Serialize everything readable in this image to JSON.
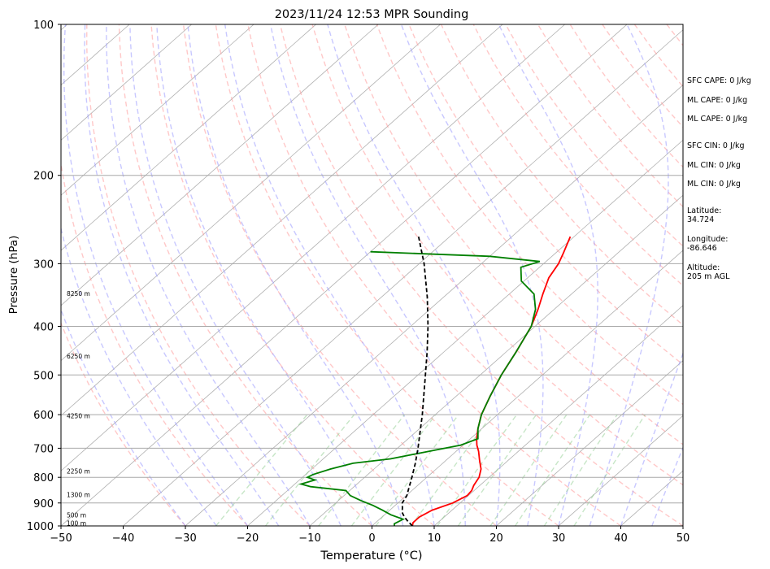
{
  "chart_data": {
    "type": "line",
    "title": "2023/11/24 12:53 MPR Sounding",
    "xlabel": "Temperature (°C)",
    "ylabel": "Pressure (hPa)",
    "xlim": [
      -50,
      50
    ],
    "ylim": [
      1000,
      100
    ],
    "y_scale": "log",
    "skew": "skew-T",
    "grid": "isobars at 200, 300, 400, 500, 600, 700, 800, 900 hPa",
    "x_ticks": [
      "−50",
      "−40",
      "−30",
      "−20",
      "−10",
      "0",
      "10",
      "20",
      "30",
      "40",
      "50"
    ],
    "y_ticks": [
      "100",
      "200",
      "300",
      "400",
      "500",
      "600",
      "700",
      "800",
      "900",
      "1000"
    ],
    "series": [
      {
        "role": "temperature",
        "color": "#ff0000",
        "points": [
          [
            1000,
            6.5
          ],
          [
            985,
            6.0
          ],
          [
            960,
            6.0
          ],
          [
            930,
            6.8
          ],
          [
            900,
            8.8
          ],
          [
            870,
            9.8
          ],
          [
            850,
            9.6
          ],
          [
            830,
            9.0
          ],
          [
            800,
            8.4
          ],
          [
            770,
            7.2
          ],
          [
            740,
            5.4
          ],
          [
            710,
            3.6
          ],
          [
            690,
            2.2
          ],
          [
            670,
            1.0
          ],
          [
            640,
            -0.6
          ],
          [
            600,
            -2.6
          ],
          [
            550,
            -4.6
          ],
          [
            500,
            -6.6
          ],
          [
            450,
            -8.4
          ],
          [
            400,
            -10.6
          ],
          [
            370,
            -12.6
          ],
          [
            345,
            -14.6
          ],
          [
            320,
            -16.6
          ],
          [
            300,
            -17.6
          ],
          [
            285,
            -18.8
          ],
          [
            265,
            -20.6
          ]
        ]
      },
      {
        "role": "dewpoint",
        "color": "#008000",
        "points": [
          [
            1000,
            3.6
          ],
          [
            990,
            3.2
          ],
          [
            970,
            3.8
          ],
          [
            950,
            1.0
          ],
          [
            930,
            -1.2
          ],
          [
            910,
            -3.6
          ],
          [
            890,
            -6.4
          ],
          [
            870,
            -9.0
          ],
          [
            850,
            -10.6
          ],
          [
            835,
            -17.0
          ],
          [
            825,
            -19.0
          ],
          [
            810,
            -17.5
          ],
          [
            800,
            -19.2
          ],
          [
            790,
            -18.8
          ],
          [
            770,
            -17.0
          ],
          [
            750,
            -14.4
          ],
          [
            735,
            -9.2
          ],
          [
            710,
            -4.4
          ],
          [
            690,
            -0.4
          ],
          [
            670,
            1.2
          ],
          [
            640,
            -0.6
          ],
          [
            600,
            -2.6
          ],
          [
            550,
            -4.6
          ],
          [
            500,
            -6.6
          ],
          [
            450,
            -8.4
          ],
          [
            400,
            -10.6
          ],
          [
            370,
            -13.0
          ],
          [
            345,
            -16.0
          ],
          [
            325,
            -20.4
          ],
          [
            305,
            -23.0
          ],
          [
            297,
            -21.0
          ],
          [
            290,
            -30.0
          ],
          [
            284,
            -50.0
          ]
        ]
      },
      {
        "role": "parcel",
        "color": "#000000",
        "dash": "dashed",
        "points": [
          [
            1000,
            6.5
          ],
          [
            980,
            5.0
          ],
          [
            960,
            3.6
          ],
          [
            940,
            2.4
          ],
          [
            920,
            1.6
          ],
          [
            900,
            0.7
          ],
          [
            870,
            0.1
          ],
          [
            850,
            -0.6
          ],
          [
            800,
            -2.4
          ],
          [
            750,
            -4.4
          ],
          [
            700,
            -6.7
          ],
          [
            650,
            -9.3
          ],
          [
            600,
            -12.1
          ],
          [
            550,
            -15.3
          ],
          [
            500,
            -18.8
          ],
          [
            450,
            -22.7
          ],
          [
            400,
            -27.2
          ],
          [
            350,
            -32.6
          ],
          [
            300,
            -39.2
          ],
          [
            265,
            -45.0
          ]
        ]
      }
    ],
    "background_lines": {
      "dry_adiabats": "dashed, light red",
      "moist_adiabats": "dashed, light blue",
      "mixing_ratio": "dashed, light green",
      "isotherms": "solid, gray"
    },
    "height_labels": [
      {
        "pressure": 990,
        "text": "100 m"
      },
      {
        "pressure": 955,
        "text": "500 m"
      },
      {
        "pressure": 870,
        "text": "1300 m"
      },
      {
        "pressure": 780,
        "text": "2250 m"
      },
      {
        "pressure": 605,
        "text": "4250 m"
      },
      {
        "pressure": 460,
        "text": "6250 m"
      },
      {
        "pressure": 345,
        "text": "8250 m"
      }
    ],
    "annotations": [
      "SFC CAPE: 0 J/kg",
      "ML CAPE: 0 J/kg",
      "ML CAPE: 0 J/kg",
      "SFC CIN: 0 J/kg",
      "ML CIN: 0 J/kg",
      "ML CIN: 0 J/kg",
      "Latitude:\n34.724",
      "Longitude:\n-86.646",
      "Altitude:\n205 m AGL"
    ]
  }
}
